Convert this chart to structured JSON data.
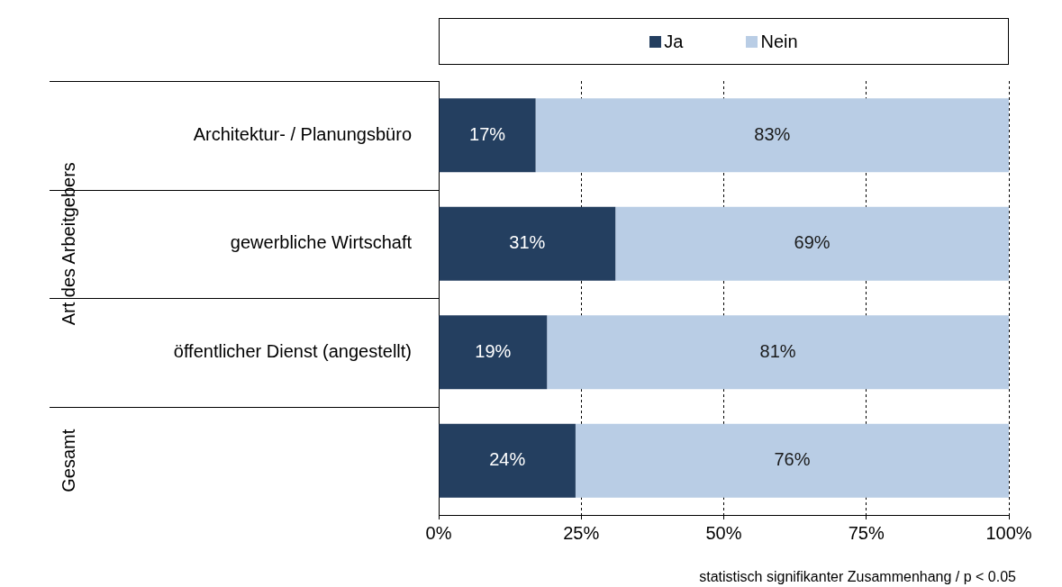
{
  "chart_data": {
    "type": "bar",
    "orientation": "horizontal",
    "stacked": true,
    "categories": [
      "Architektur- / Planungsbüro",
      "gewerbliche Wirtschaft",
      "öffentlicher Dienst (angestellt)",
      null
    ],
    "series": [
      {
        "name": "Ja",
        "color": "#243f60",
        "values": [
          17,
          31,
          19,
          24
        ],
        "value_labels": [
          "17%",
          "31%",
          "19%",
          "24%"
        ]
      },
      {
        "name": "Nein",
        "color": "#b9cde5",
        "values": [
          83,
          69,
          81,
          76
        ],
        "value_labels": [
          "83%",
          "69%",
          "81%",
          "76%"
        ]
      }
    ],
    "xlim": [
      0,
      100
    ],
    "xticks": [
      {
        "value": 0,
        "label": "0%"
      },
      {
        "value": 25,
        "label": "25%"
      },
      {
        "value": 50,
        "label": "50%"
      },
      {
        "value": 75,
        "label": "75%"
      },
      {
        "value": 100,
        "label": "100%"
      }
    ],
    "grid": "x",
    "legend": "top",
    "annotations": [
      "Art des Arbeitgebers",
      "Gesamt",
      "statistisch signifikanter Zusammenhang / p < 0.05"
    ]
  }
}
